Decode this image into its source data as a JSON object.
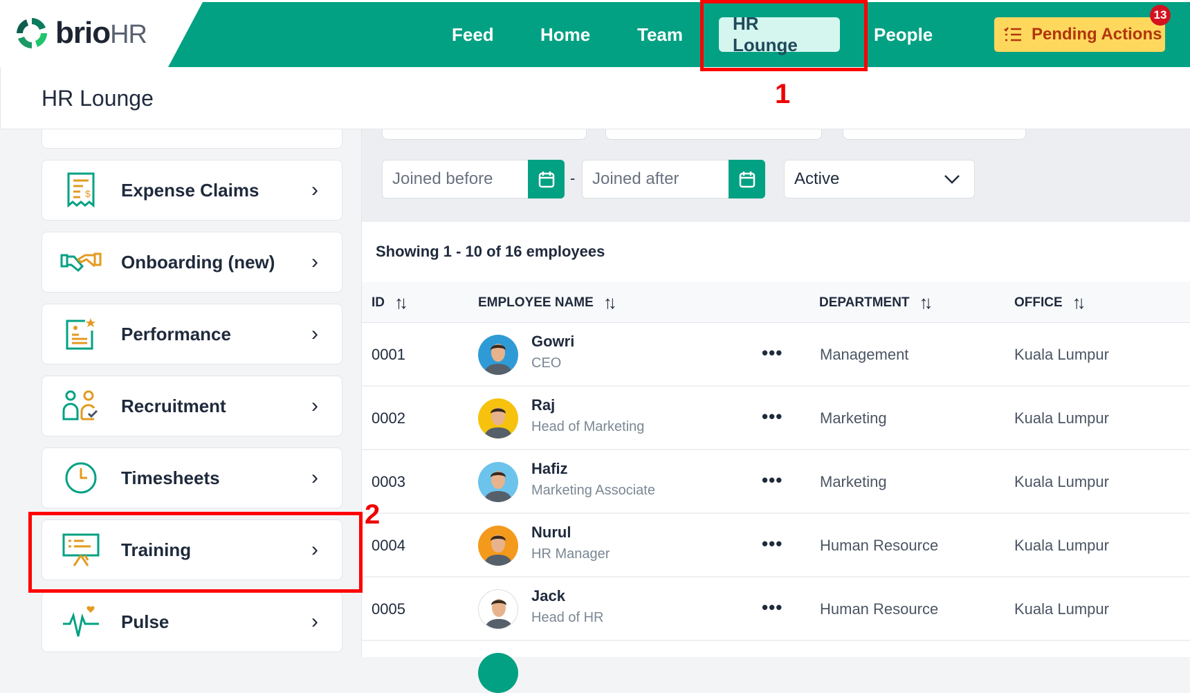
{
  "brand": {
    "name_bold": "brio",
    "name_light": "HR"
  },
  "nav": {
    "items": [
      {
        "label": "Feed"
      },
      {
        "label": "Home"
      },
      {
        "label": "Team"
      },
      {
        "label": "HR Lounge",
        "active": true
      },
      {
        "label": "People"
      }
    ],
    "pending": {
      "label": "Pending Actions",
      "count": "13",
      "icon": "checklist-icon"
    }
  },
  "annotations": {
    "one": "1",
    "two": "2"
  },
  "page": {
    "title": "HR Lounge"
  },
  "sidebar": {
    "items": [
      {
        "label": "Expense Claims",
        "icon": "receipt-icon"
      },
      {
        "label": "Onboarding (new)",
        "icon": "handshake-icon"
      },
      {
        "label": "Performance",
        "icon": "performance-icon"
      },
      {
        "label": "Recruitment",
        "icon": "recruitment-icon"
      },
      {
        "label": "Timesheets",
        "icon": "clock-icon"
      },
      {
        "label": "Training",
        "icon": "training-icon"
      },
      {
        "label": "Pulse",
        "icon": "pulse-icon"
      }
    ]
  },
  "filters": {
    "joined_before_placeholder": "Joined before",
    "separator": "-",
    "joined_after_placeholder": "Joined after",
    "status": "Active"
  },
  "table": {
    "summary": "Showing 1 - 10 of 16 employees",
    "columns": [
      "ID",
      "EMPLOYEE NAME",
      "DEPARTMENT",
      "OFFICE"
    ],
    "rows": [
      {
        "id": "0001",
        "name": "Gowri",
        "title": "CEO",
        "department": "Management",
        "office": "Kuala Lumpur",
        "avatar_color": "#2f9bd6"
      },
      {
        "id": "0002",
        "name": "Raj",
        "title": "Head of Marketing",
        "department": "Marketing",
        "office": "Kuala Lumpur",
        "avatar_color": "#f6c20e"
      },
      {
        "id": "0003",
        "name": "Hafiz",
        "title": "Marketing Associate",
        "department": "Marketing",
        "office": "Kuala Lumpur",
        "avatar_color": "#6cc3ec"
      },
      {
        "id": "0004",
        "name": "Nurul",
        "title": "HR Manager",
        "department": "Human Resource",
        "office": "Kuala Lumpur",
        "avatar_color": "#f39a1c"
      },
      {
        "id": "0005",
        "name": "Jack",
        "title": "Head of HR",
        "department": "Human Resource",
        "office": "Kuala Lumpur",
        "avatar_color": "#ffffff"
      }
    ]
  },
  "colors": {
    "brand": "#03a183",
    "pending_bg": "#fdd85d",
    "badge": "#d4121f",
    "annotation": "#ff0000"
  }
}
